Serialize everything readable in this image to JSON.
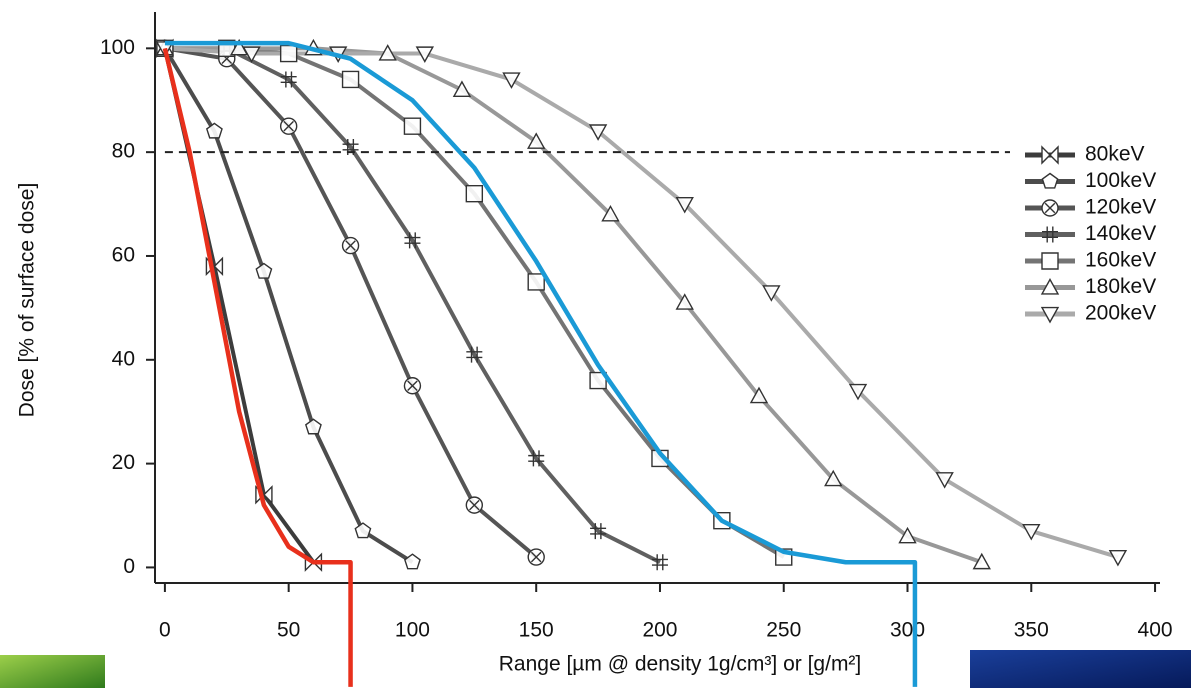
{
  "chart_data": {
    "type": "line",
    "x_label": "Range [µm @ density 1g/cm³] or [g/m²]",
    "y_label": "Dose [% of surface dose]",
    "xlim": [
      -4,
      402
    ],
    "ylim": [
      -3,
      107
    ],
    "xticks": [
      0,
      50,
      100,
      150,
      200,
      250,
      300,
      350,
      400
    ],
    "yticks": [
      0,
      20,
      40,
      60,
      80,
      100
    ],
    "hline": 80,
    "legend": "right",
    "series": [
      {
        "name": "80keV",
        "color": "#3c3c3c",
        "x": [
          0,
          20,
          40,
          60
        ],
        "values": [
          100,
          58,
          14,
          1
        ]
      },
      {
        "name": "100keV",
        "color": "#4c4c4c",
        "x": [
          0,
          20,
          40,
          60,
          80,
          100
        ],
        "values": [
          100,
          84,
          57,
          27,
          7,
          1
        ]
      },
      {
        "name": "120keV",
        "color": "#555555",
        "x": [
          0,
          25,
          50,
          75,
          100,
          125,
          150
        ],
        "values": [
          100,
          98,
          85,
          62,
          35,
          12,
          2
        ]
      },
      {
        "name": "140keV",
        "color": "#606060",
        "x": [
          0,
          25,
          50,
          75,
          100,
          125,
          150,
          175,
          200
        ],
        "values": [
          100,
          100,
          94,
          81,
          63,
          41,
          21,
          7,
          1
        ]
      },
      {
        "name": "160keV",
        "color": "#747474",
        "x": [
          0,
          25,
          50,
          75,
          100,
          125,
          150,
          175,
          200,
          225,
          250
        ],
        "values": [
          100,
          100,
          99,
          94,
          85,
          72,
          55,
          36,
          21,
          9,
          2
        ]
      },
      {
        "name": "180keV",
        "color": "#989898",
        "x": [
          0,
          30,
          60,
          90,
          120,
          150,
          180,
          210,
          240,
          270,
          300,
          330
        ],
        "values": [
          100,
          100,
          100,
          99,
          92,
          82,
          68,
          51,
          33,
          17,
          6,
          1
        ]
      },
      {
        "name": "200keV",
        "color": "#aaaaaa",
        "x": [
          0,
          35,
          70,
          105,
          140,
          175,
          210,
          245,
          280,
          315,
          350,
          385
        ],
        "values": [
          100,
          99,
          99,
          99,
          94,
          84,
          70,
          53,
          34,
          17,
          7,
          2
        ]
      }
    ],
    "overlays": [
      {
        "color": "#e8301c",
        "x": [
          0,
          10,
          20,
          30,
          40,
          50,
          60,
          75,
          75
        ],
        "values": [
          100,
          80,
          55,
          30,
          12,
          4,
          1,
          1,
          -23
        ]
      },
      {
        "color": "#1a9ad6",
        "x": [
          0,
          50,
          75,
          100,
          125,
          150,
          175,
          200,
          225,
          250,
          275,
          303,
          303
        ],
        "values": [
          101,
          101,
          98,
          90,
          77,
          59,
          39,
          22,
          9,
          3,
          1,
          1,
          -23
        ]
      }
    ]
  }
}
